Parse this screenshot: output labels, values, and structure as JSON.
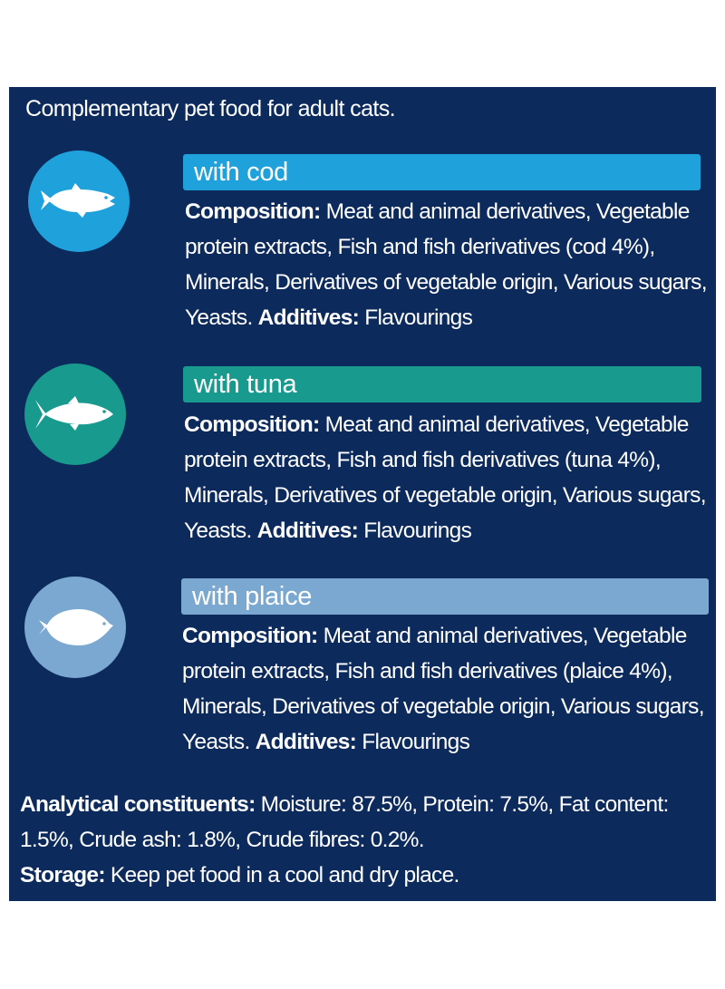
{
  "intro": "Complementary pet food for adult cats.",
  "variants": [
    {
      "title": "with cod",
      "icon": "cod-fish-icon",
      "color": "#1fa1dc",
      "composition_label": "Composition:",
      "composition_text": "Meat and animal derivatives, Vegetable protein extracts, Fish and fish derivatives (cod 4%), Minerals, Derivatives of vegetable origin, Various sugars, Yeasts.",
      "additives_label": "Additives:",
      "additives_text": "Flavourings"
    },
    {
      "title": "with tuna",
      "icon": "tuna-fish-icon",
      "color": "#199a8e",
      "composition_label": "Composition:",
      "composition_text": "Meat and animal derivatives, Vegetable protein extracts, Fish and fish derivatives (tuna 4%), Minerals, Derivatives of vegetable origin, Various sugars, Yeasts.",
      "additives_label": "Additives:",
      "additives_text": "Flavourings"
    },
    {
      "title": "with plaice",
      "icon": "plaice-fish-icon",
      "color": "#7aa8d0",
      "composition_label": "Composition:",
      "composition_text": "Meat and animal derivatives, Vegetable protein extracts, Fish and fish derivatives (plaice 4%), Minerals, Derivatives of vegetable origin, Various sugars, Yeasts.",
      "additives_label": "Additives:",
      "additives_text": "Flavourings"
    }
  ],
  "analytical_label": "Analytical constituents:",
  "analytical_text": "Moisture: 87.5%, Protein: 7.5%, Fat content: 1.5%, Crude ash: 1.8%, Crude fibres: 0.2%.",
  "storage_label": "Storage:",
  "storage_text": "Keep pet food in a cool and dry place.",
  "colors": {
    "panel": "#0d2a5c",
    "text": "#ffffff"
  }
}
